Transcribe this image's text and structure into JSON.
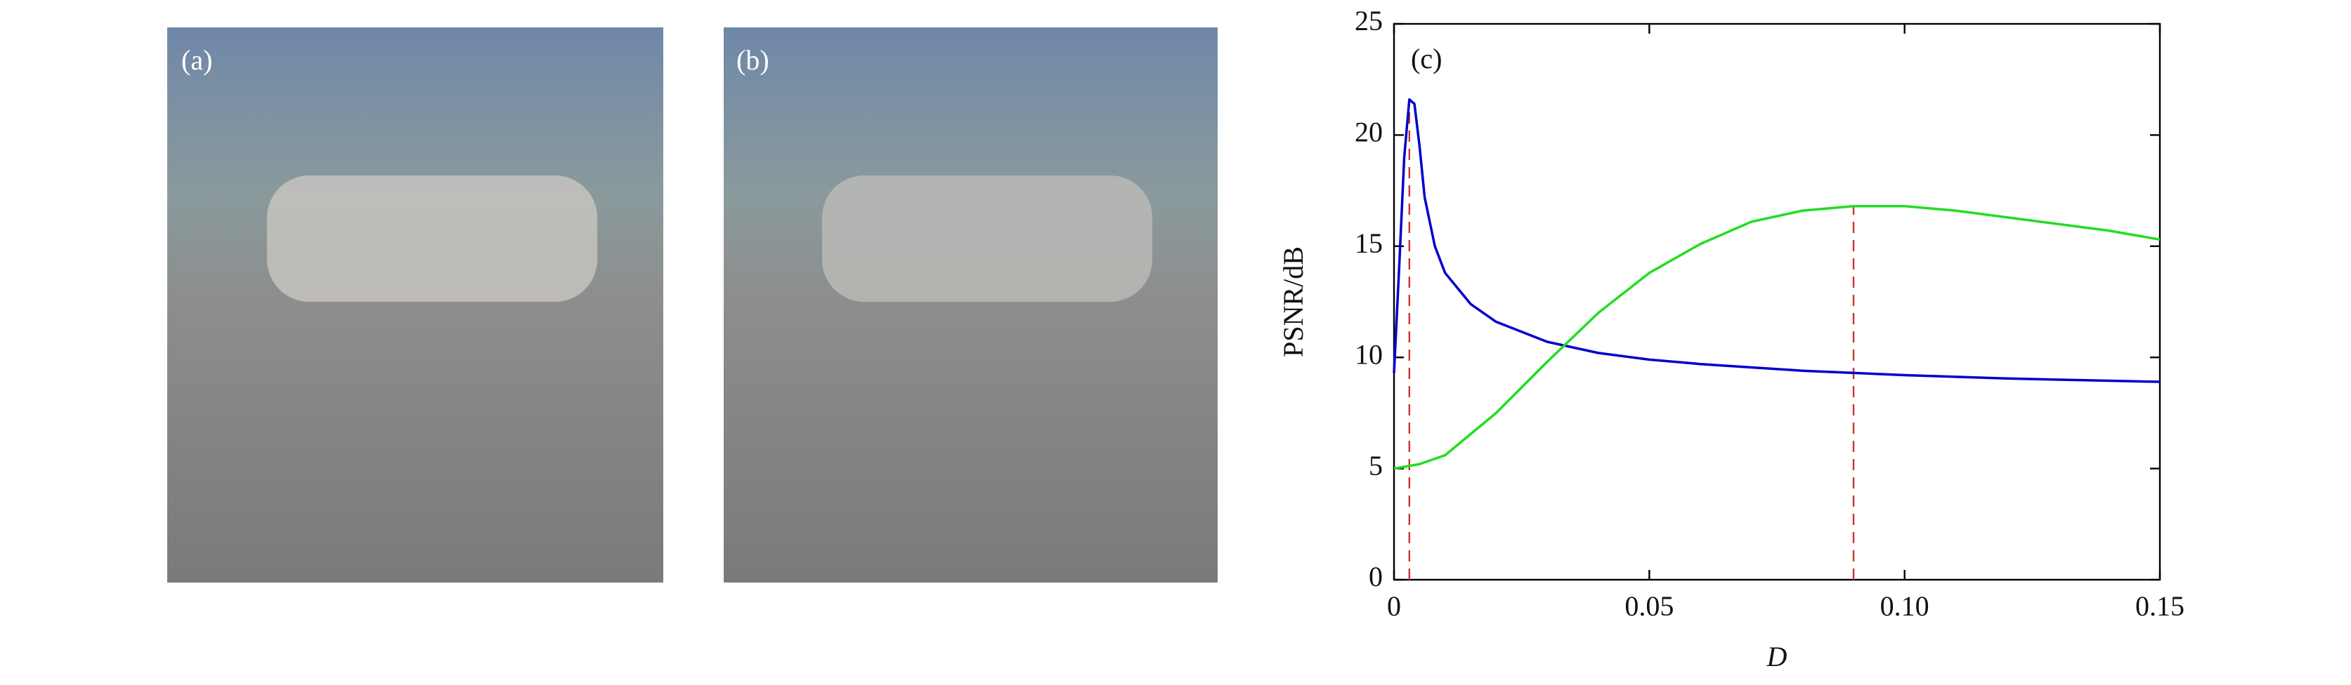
{
  "images": [
    {
      "label": "(a)"
    },
    {
      "label": "(b)"
    }
  ],
  "chart_data": {
    "type": "line",
    "annotation": "(c)",
    "x_label": "D",
    "y_label": "PSNR/dB",
    "xlim": [
      0,
      0.15
    ],
    "xticks": [
      0,
      0.05,
      {
        "value": 0.1,
        "label": "0.10"
      },
      0.15
    ],
    "ylim": [
      0,
      25
    ],
    "yticks": [
      0,
      5,
      10,
      15,
      20,
      25
    ],
    "series": [
      {
        "color": "#0000cc",
        "x": [
          0,
          0.001,
          0.002,
          0.003,
          0.004,
          0.005,
          0.006,
          0.008,
          0.01,
          0.015,
          0.02,
          0.03,
          0.04,
          0.05,
          0.06,
          0.08,
          0.1,
          0.12,
          0.15
        ],
        "values": [
          9.3,
          14,
          19,
          21.6,
          21.4,
          19.5,
          17.2,
          15,
          13.8,
          12.4,
          11.6,
          10.7,
          10.2,
          9.9,
          9.7,
          9.4,
          9.2,
          9.05,
          8.9
        ]
      },
      {
        "color": "#22dd22",
        "x": [
          0,
          0.005,
          0.01,
          0.02,
          0.03,
          0.04,
          0.05,
          0.06,
          0.07,
          0.08,
          0.09,
          0.1,
          0.11,
          0.12,
          0.13,
          0.14,
          0.15
        ],
        "values": [
          5.0,
          5.2,
          5.6,
          7.5,
          9.8,
          12.0,
          13.8,
          15.1,
          16.1,
          16.6,
          16.8,
          16.8,
          16.6,
          16.3,
          16.0,
          15.7,
          15.3
        ]
      }
    ],
    "reference_lines": [
      {
        "x": 0.003,
        "y": 21.6
      },
      {
        "x": 0.09,
        "y": 16.8
      }
    ],
    "reference_color": "#cc3333"
  }
}
